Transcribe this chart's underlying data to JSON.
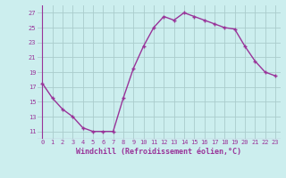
{
  "x": [
    0,
    1,
    2,
    3,
    4,
    5,
    6,
    7,
    8,
    9,
    10,
    11,
    12,
    13,
    14,
    15,
    16,
    17,
    18,
    19,
    20,
    21,
    22,
    23
  ],
  "y": [
    17.5,
    15.5,
    14.0,
    13.0,
    11.5,
    11.0,
    11.0,
    11.0,
    15.5,
    19.5,
    22.5,
    25.0,
    26.5,
    26.0,
    27.0,
    26.5,
    26.0,
    25.5,
    25.0,
    24.8,
    22.5,
    20.5,
    19.0,
    18.5
  ],
  "line_color": "#993399",
  "marker": "+",
  "marker_size": 3.5,
  "marker_color": "#993399",
  "background_color": "#cceeee",
  "grid_color": "#aacccc",
  "xlabel": "Windchill (Refroidissement éolien,°C)",
  "xlabel_color": "#993399",
  "tick_color": "#993399",
  "ylim": [
    10.0,
    28.0
  ],
  "xlim": [
    -0.5,
    23.5
  ],
  "yticks": [
    11,
    13,
    15,
    17,
    19,
    21,
    23,
    25,
    27
  ],
  "xticks": [
    0,
    1,
    2,
    3,
    4,
    5,
    6,
    7,
    8,
    9,
    10,
    11,
    12,
    13,
    14,
    15,
    16,
    17,
    18,
    19,
    20,
    21,
    22,
    23
  ],
  "line_width": 1.0,
  "tick_fontsize": 5.0,
  "xlabel_fontsize": 6.0
}
